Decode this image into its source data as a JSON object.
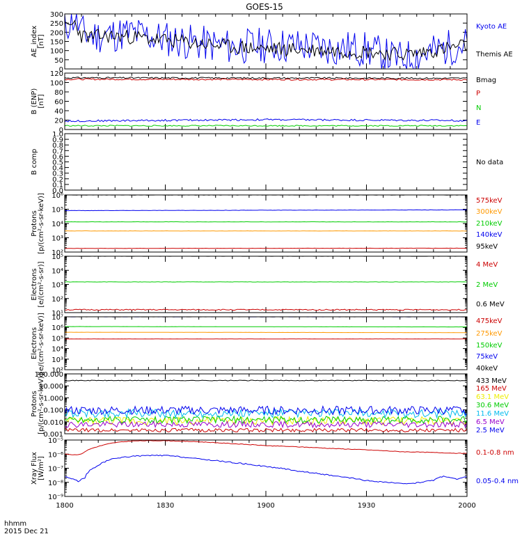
{
  "title": "GOES-15",
  "footer": {
    "time_unit": "hhmm",
    "date": "2015 Dec 21"
  },
  "colors": {
    "black": "#000000",
    "red": "#cc0000",
    "green": "#00cc00",
    "blue": "#0000ee",
    "orange": "#ff9900",
    "cyan": "#00bbee",
    "yellow": "#eeee00",
    "purple": "#9900cc"
  },
  "chart_data": [
    {
      "id": "ae",
      "type": "line",
      "scale": "linear",
      "ylabel": [
        "AE_index",
        "[nT]"
      ],
      "ylim": [
        0,
        300
      ],
      "yticks": [
        0,
        50,
        100,
        150,
        200,
        250,
        300
      ],
      "ytick_labels": [
        "0",
        "50",
        "100",
        "150",
        "200",
        "250",
        "300"
      ],
      "x_domain": [
        0,
        120
      ],
      "series": [
        {
          "name": "Kyoto AE",
          "color": "blue",
          "noise": 10,
          "seed": 11,
          "x": [
            0,
            3,
            5,
            8,
            12,
            20,
            28,
            40,
            50,
            60,
            72,
            80,
            85,
            90,
            95,
            98,
            100,
            105,
            110,
            115,
            120
          ],
          "y": [
            230,
            280,
            200,
            180,
            185,
            195,
            170,
            140,
            120,
            130,
            125,
            110,
            115,
            105,
            80,
            60,
            55,
            75,
            95,
            120,
            140
          ]
        },
        {
          "name": "Themis AE",
          "color": "black",
          "noise": 4,
          "seed": 23,
          "x": [
            0,
            3,
            5,
            8,
            12,
            20,
            28,
            40,
            50,
            60,
            72,
            80,
            90,
            100,
            105,
            110,
            120
          ],
          "y": [
            220,
            250,
            180,
            175,
            180,
            175,
            160,
            140,
            120,
            110,
            105,
            100,
            95,
            80,
            85,
            100,
            130
          ]
        }
      ]
    },
    {
      "id": "benp",
      "type": "line",
      "scale": "linear",
      "ylabel": [
        "B (ENP)",
        "[nT]"
      ],
      "ylim": [
        0,
        120
      ],
      "yticks": [
        0,
        20,
        40,
        60,
        80,
        100,
        120
      ],
      "ytick_labels": [
        "0",
        "20",
        "40",
        "60",
        "80",
        "100",
        "120"
      ],
      "x_domain": [
        0,
        120
      ],
      "series": [
        {
          "name": "Bmag",
          "color": "black",
          "noise": 0.4,
          "seed": 31,
          "x": [
            0,
            120
          ],
          "y": [
            110,
            109
          ]
        },
        {
          "name": "P",
          "color": "red",
          "noise": 0.4,
          "seed": 32,
          "x": [
            0,
            120
          ],
          "y": [
            107,
            106
          ]
        },
        {
          "name": "N",
          "color": "green",
          "noise": 0.3,
          "seed": 33,
          "x": [
            0,
            120
          ],
          "y": [
            8,
            8
          ]
        },
        {
          "name": "E",
          "color": "blue",
          "noise": 0.5,
          "seed": 34,
          "x": [
            0,
            60,
            120
          ],
          "y": [
            18,
            21,
            19
          ]
        }
      ]
    },
    {
      "id": "bcomp",
      "type": "line",
      "scale": "linear",
      "ylabel": [
        "B comp"
      ],
      "ylim": [
        0,
        1
      ],
      "yticks": [
        0,
        0.1,
        0.2,
        0.3,
        0.4,
        0.5,
        0.6,
        0.7,
        0.8,
        0.9,
        1.0
      ],
      "ytick_labels": [
        "0.0",
        "0.1",
        "0.2",
        "0.3",
        "0.4",
        "0.5",
        "0.6",
        "0.7",
        "0.8",
        "0.9",
        "1.0"
      ],
      "x_domain": [
        0,
        120
      ],
      "no_data": "No data",
      "series": []
    },
    {
      "id": "protons1",
      "type": "line",
      "scale": "log",
      "ylabel": [
        "Protons",
        "[p/(cm²-s-sr-keV)]"
      ],
      "ylim": [
        100,
        1000000
      ],
      "yticks": [
        100,
        1000,
        10000,
        100000,
        1000000
      ],
      "ytick_labels": [
        "10²",
        "10³",
        "10⁴",
        "10⁵",
        "10⁶"
      ],
      "x_domain": [
        0,
        120
      ],
      "series": [
        {
          "name": "575keV",
          "color": "red",
          "noise": 0.01,
          "seed": 41,
          "x": [
            0,
            120
          ],
          "y": [
            180,
            185
          ]
        },
        {
          "name": "300keV",
          "color": "orange",
          "noise": 0.01,
          "seed": 42,
          "x": [
            0,
            120
          ],
          "y": [
            3000,
            3000
          ]
        },
        {
          "name": "210keV",
          "color": "green",
          "noise": 0.01,
          "seed": 43,
          "x": [
            0,
            120
          ],
          "y": [
            13000,
            13000
          ]
        },
        {
          "name": "140keV",
          "color": "blue",
          "noise": 0.01,
          "seed": 44,
          "x": [
            0,
            120
          ],
          "y": [
            80000,
            90000
          ]
        },
        {
          "name": "95keV",
          "color": "black",
          "noise": 0.01,
          "seed": 45,
          "x": [
            0,
            120
          ],
          "y": [
            1000000,
            1000000
          ]
        }
      ]
    },
    {
      "id": "electrons1",
      "type": "line",
      "scale": "log",
      "ylabel": [
        "Electrons",
        "[e/(cm²-s-sr)]"
      ],
      "ylim": [
        10,
        100000
      ],
      "yticks": [
        10,
        100,
        1000,
        10000,
        100000
      ],
      "ytick_labels": [
        "10¹",
        "10²",
        "10³",
        "10⁴",
        "10⁵"
      ],
      "x_domain": [
        0,
        120
      ],
      "series": [
        {
          "name": "4 MeV",
          "color": "red",
          "noise": 0.04,
          "seed": 51,
          "x": [
            0,
            120
          ],
          "y": [
            16,
            16
          ]
        },
        {
          "name": "2 MeV",
          "color": "green",
          "noise": 0.01,
          "seed": 52,
          "x": [
            0,
            120
          ],
          "y": [
            1500,
            1500
          ]
        },
        {
          "name": "0.6 MeV",
          "color": "black",
          "noise": 0.005,
          "seed": 53,
          "x": [
            0,
            120
          ],
          "y": [
            100000,
            100000
          ]
        }
      ]
    },
    {
      "id": "electrons2",
      "type": "line",
      "scale": "log",
      "ylabel": [
        "Electrons",
        "[e/(cm²-s-sr-keV)]"
      ],
      "ylim": [
        100,
        10000000
      ],
      "yticks": [
        100,
        1000,
        10000,
        100000,
        1000000,
        10000000
      ],
      "ytick_labels": [
        "10²",
        "10³",
        "10⁴",
        "10⁵",
        "10⁶",
        "10⁷"
      ],
      "x_domain": [
        0,
        120
      ],
      "series": [
        {
          "name": "475keV",
          "color": "red",
          "noise": 0.005,
          "seed": 61,
          "x": [
            0,
            120
          ],
          "y": [
            80000,
            80000
          ]
        },
        {
          "name": "275keV",
          "color": "orange",
          "noise": 0.005,
          "seed": 62,
          "x": [
            0,
            120
          ],
          "y": [
            350000,
            320000
          ]
        },
        {
          "name": "150keV",
          "color": "green",
          "noise": 0.005,
          "seed": 63,
          "x": [
            0,
            120
          ],
          "y": [
            1200000,
            1100000
          ]
        },
        {
          "name": "75keV",
          "color": "blue",
          "noise": 0.005,
          "seed": 64,
          "x": [
            0,
            120
          ],
          "y": [
            10000000,
            10000000
          ]
        },
        {
          "name": "40keV",
          "color": "black",
          "noise": 0.005,
          "seed": 65,
          "x": [
            0,
            120
          ],
          "y": [
            10000000,
            10000000
          ]
        }
      ]
    },
    {
      "id": "protons2",
      "type": "line",
      "scale": "log",
      "ylabel": [
        "Protons",
        "[p/(cm²-s-sr-keV)]"
      ],
      "ylim": [
        0.001,
        100
      ],
      "yticks": [
        0.001,
        0.01,
        0.1,
        1,
        10,
        100
      ],
      "ytick_labels": [
        "0.001",
        "0.010",
        "0.100",
        "1.000",
        "10.000",
        "100.000"
      ],
      "x_domain": [
        0,
        120
      ],
      "series": [
        {
          "name": "433 MeV",
          "color": "black",
          "noise": 0.03,
          "seed": 71,
          "x": [
            0,
            120
          ],
          "y": [
            28,
            28
          ]
        },
        {
          "name": "165 MeV",
          "color": "red",
          "noise": 0.15,
          "seed": 72,
          "x": [
            0,
            120
          ],
          "y": [
            0.002,
            0.002
          ]
        },
        {
          "name": "63.1 MeV",
          "color": "yellow",
          "noise": 0.35,
          "seed": 73,
          "x": [
            0,
            120
          ],
          "y": [
            0.012,
            0.012
          ]
        },
        {
          "name": "30.6 MeV",
          "color": "green",
          "noise": 0.3,
          "seed": 74,
          "x": [
            0,
            120
          ],
          "y": [
            0.015,
            0.015
          ]
        },
        {
          "name": "11.6 MeV",
          "color": "cyan",
          "noise": 0.35,
          "seed": 75,
          "x": [
            0,
            120
          ],
          "y": [
            0.05,
            0.05
          ]
        },
        {
          "name": "6.5 MeV",
          "color": "purple",
          "noise": 0.25,
          "seed": 76,
          "x": [
            0,
            120
          ],
          "y": [
            0.006,
            0.006
          ]
        },
        {
          "name": "2.5 MeV",
          "color": "blue",
          "noise": 0.35,
          "seed": 77,
          "x": [
            0,
            120
          ],
          "y": [
            0.09,
            0.09
          ]
        }
      ]
    },
    {
      "id": "xray",
      "type": "line",
      "scale": "log",
      "ylabel": [
        "Xray Flux",
        "[W/m²]"
      ],
      "ylim": [
        1e-09,
        1e-05
      ],
      "yticks": [
        1e-09,
        1e-08,
        1e-07,
        1e-06,
        1e-05
      ],
      "ytick_labels": [
        "10⁻⁹",
        "10⁻⁸",
        "10⁻⁷",
        "10⁻⁶",
        "10⁻⁵"
      ],
      "x_domain": [
        0,
        120
      ],
      "series": [
        {
          "name": "0.1-0.8 nm",
          "color": "red",
          "noise": 0.02,
          "seed": 81,
          "x": [
            0,
            3,
            5,
            10,
            15,
            20,
            25,
            30,
            40,
            50,
            60,
            80,
            100,
            110,
            115,
            120
          ],
          "y": [
            1e-06,
            9e-07,
            1e-06,
            3.5e-06,
            6.5e-06,
            8.5e-06,
            9e-06,
            9e-06,
            7.5e-06,
            5.5e-06,
            4e-06,
            2.5e-06,
            1.5e-06,
            1.3e-06,
            1.2e-06,
            1.1e-06
          ]
        },
        {
          "name": "0.05-0.4 nm",
          "color": "blue",
          "noise": 0.04,
          "seed": 82,
          "x": [
            0,
            4,
            6,
            10,
            15,
            20,
            25,
            30,
            40,
            50,
            60,
            70,
            80,
            90,
            100,
            105,
            110,
            113,
            117,
            120
          ],
          "y": [
            2.5e-08,
            1.2e-08,
            2e-08,
            1.5e-07,
            5e-07,
            7e-07,
            8e-07,
            8e-07,
            4.5e-07,
            2.5e-07,
            1.3e-07,
            6e-08,
            2.8e-08,
            1.3e-08,
            8e-09,
            9e-09,
            1.4e-08,
            2.8e-08,
            1.6e-08,
            2.5e-08
          ]
        }
      ]
    }
  ],
  "x_axis": {
    "tick_positions": [
      0,
      30,
      60,
      90,
      120
    ],
    "tick_labels": [
      "1800",
      "1830",
      "1900",
      "1930",
      "2000"
    ],
    "minor_step": 5
  }
}
